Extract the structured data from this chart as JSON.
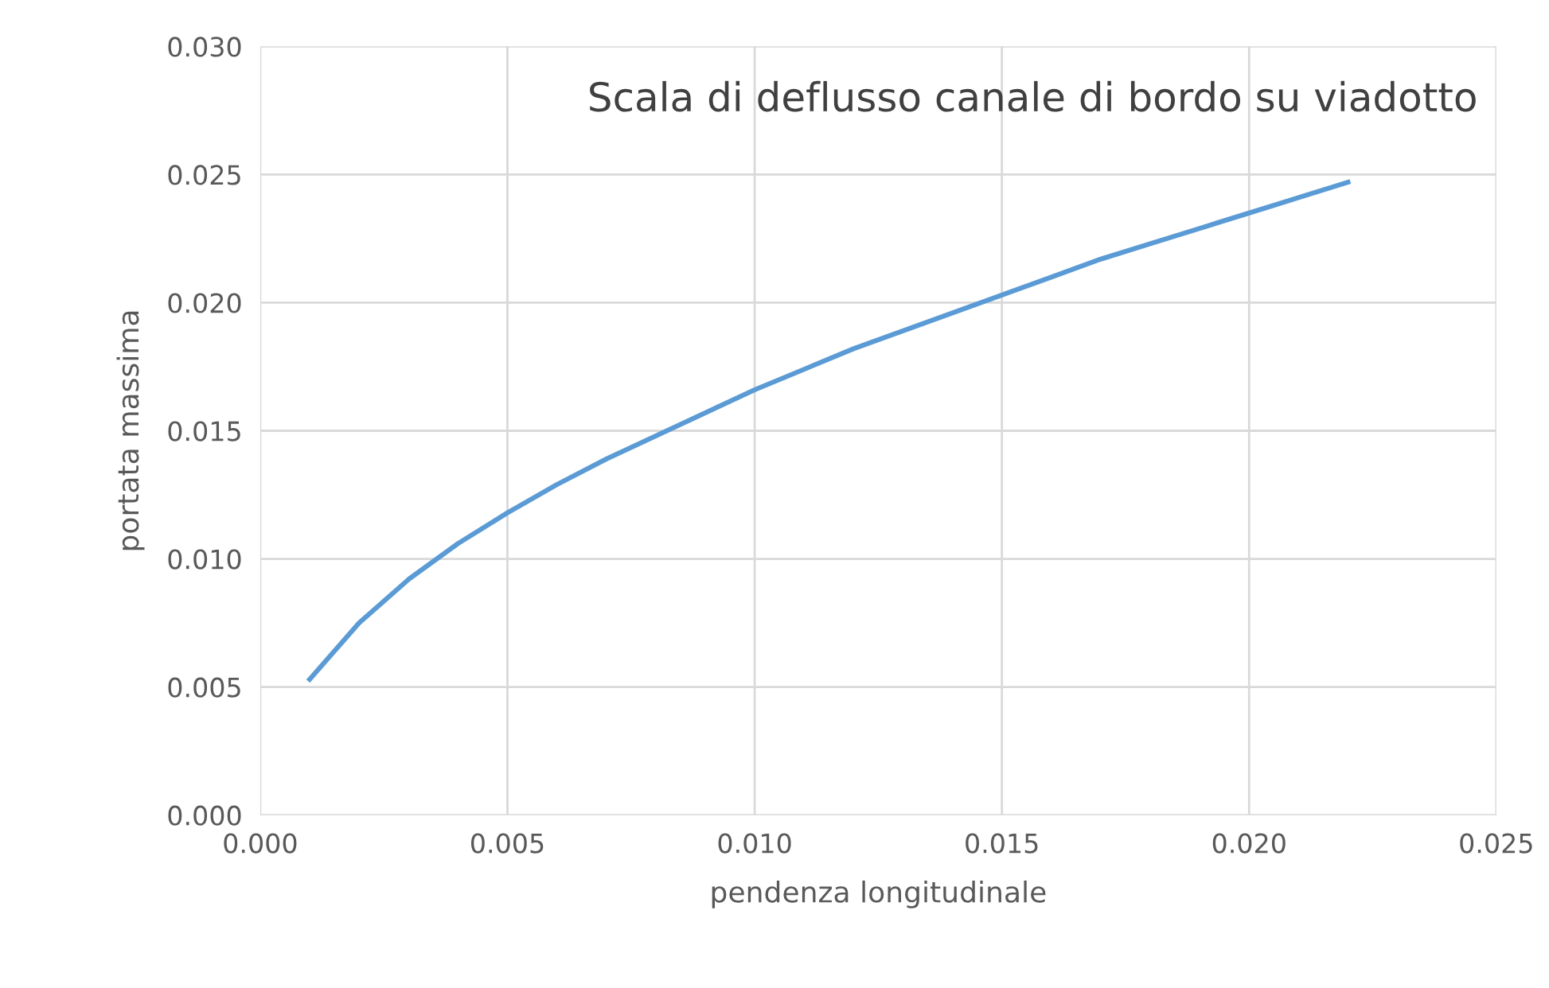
{
  "chart_data": {
    "type": "line",
    "title": "Scala di deflusso canale di bordo su viadotto",
    "xlabel": "pendenza longitudinale",
    "ylabel": "portata massima",
    "x": [
      0.001,
      0.002,
      0.003,
      0.004,
      0.005,
      0.006,
      0.007,
      0.008,
      0.009,
      0.01,
      0.011,
      0.012,
      0.013,
      0.014,
      0.015,
      0.016,
      0.017,
      0.018,
      0.019,
      0.02,
      0.021,
      0.022
    ],
    "series": [
      {
        "color": "#5b9bd5",
        "values": [
          0.0053,
          0.0075,
          0.0092,
          0.0106,
          0.0118,
          0.0129,
          0.0139,
          0.0148,
          0.0157,
          0.0166,
          0.0174,
          0.0182,
          0.0189,
          0.0196,
          0.0203,
          0.021,
          0.0217,
          0.0223,
          0.0229,
          0.0235,
          0.0241,
          0.0247
        ]
      }
    ],
    "xlim": [
      0,
      0.025
    ],
    "ylim": [
      0,
      0.03
    ],
    "xticks": [
      {
        "value": 0,
        "label": "0.000"
      },
      {
        "value": 0.005,
        "label": "0.005"
      },
      {
        "value": 0.01,
        "label": "0.010"
      },
      {
        "value": 0.015,
        "label": "0.015"
      },
      {
        "value": 0.02,
        "label": "0.020"
      },
      {
        "value": 0.025,
        "label": "0.025"
      }
    ],
    "yticks": [
      {
        "value": 0,
        "label": "0.000"
      },
      {
        "value": 0.005,
        "label": "0.005"
      },
      {
        "value": 0.01,
        "label": "0.010"
      },
      {
        "value": 0.015,
        "label": "0.015"
      },
      {
        "value": 0.02,
        "label": "0.020"
      },
      {
        "value": 0.025,
        "label": "0.025"
      },
      {
        "value": 0.03,
        "label": "0.030"
      }
    ],
    "grid": true,
    "marker": "none",
    "line_style": "solid"
  }
}
